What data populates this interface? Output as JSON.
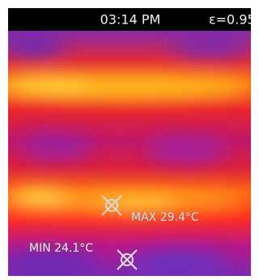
{
  "status_bar": {
    "time": "03:14 PM",
    "emissivity": "ε=0.95"
  },
  "markers": {
    "max": "MAX 29.4°C",
    "min": "MIN 24.1°C"
  }
}
